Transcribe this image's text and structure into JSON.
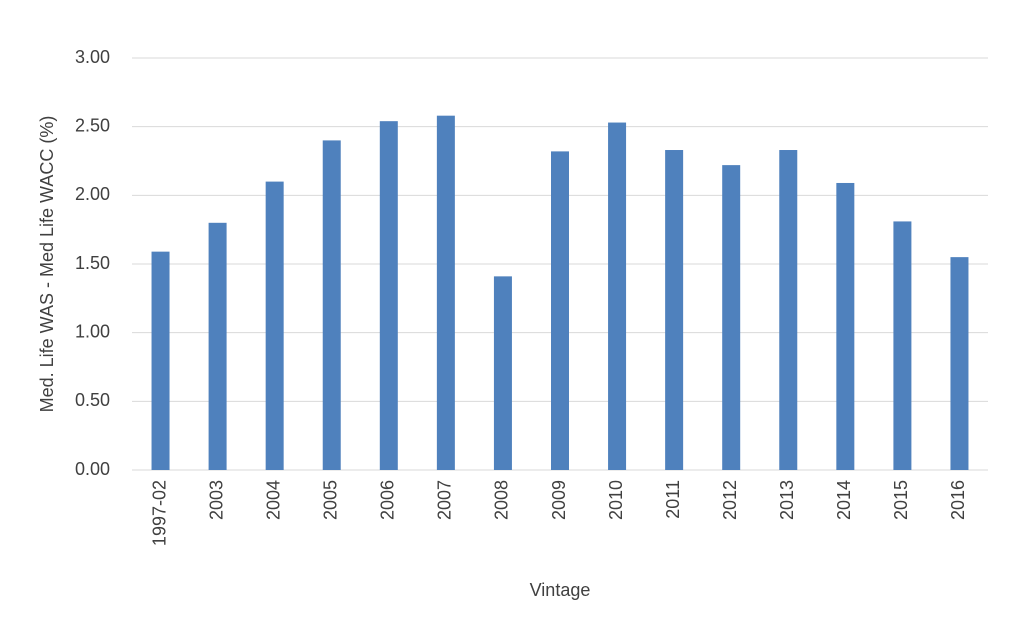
{
  "chart_data": {
    "type": "bar",
    "x_label": "Vintage",
    "y_label": "Med. Life WAS - Med Life WACC (%)",
    "categories": [
      "1997-02",
      "2003",
      "2004",
      "2005",
      "2006",
      "2007",
      "2008",
      "2009",
      "2010",
      "2011",
      "2012",
      "2013",
      "2014",
      "2015",
      "2016"
    ],
    "values": [
      1.59,
      1.8,
      2.1,
      2.4,
      2.54,
      2.58,
      1.41,
      2.32,
      2.53,
      2.33,
      2.22,
      2.33,
      2.09,
      1.81,
      1.55
    ],
    "color": "#4f81bd",
    "ylim": [
      0,
      3
    ],
    "yticks": [
      {
        "value": 0,
        "label": "0.00"
      },
      {
        "value": 0.5,
        "label": "0.50"
      },
      {
        "value": 1,
        "label": "1.00"
      },
      {
        "value": 1.5,
        "label": "1.50"
      },
      {
        "value": 2,
        "label": "2.00"
      },
      {
        "value": 2.5,
        "label": "2.50"
      },
      {
        "value": 3,
        "label": "3.00"
      }
    ],
    "grid": true
  }
}
